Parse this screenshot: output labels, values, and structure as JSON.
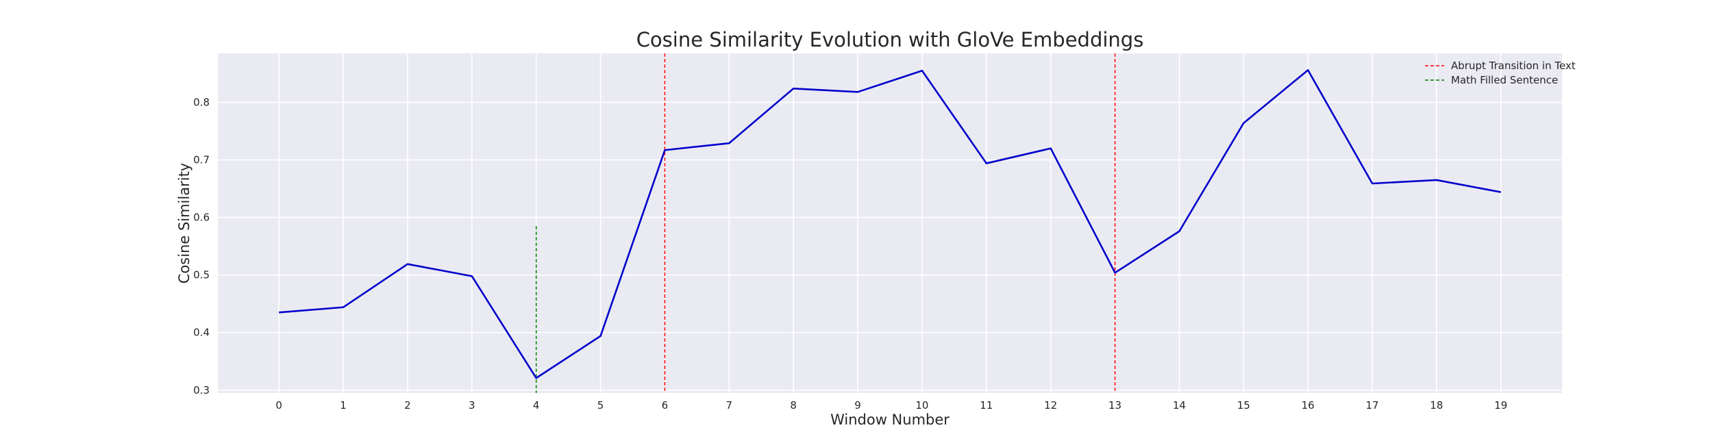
{
  "chart_data": {
    "type": "line",
    "title": "Cosine Similarity Evolution with GloVe Embeddings",
    "xlabel": "Window Number",
    "ylabel": "Cosine Similarity",
    "xlim": [
      -0.95,
      19.95
    ],
    "ylim": [
      0.295,
      0.885
    ],
    "xticks": [
      0,
      1,
      2,
      3,
      4,
      5,
      6,
      7,
      8,
      9,
      10,
      11,
      12,
      13,
      14,
      15,
      16,
      17,
      18,
      19
    ],
    "yticks": [
      0.3,
      0.4,
      0.5,
      0.6,
      0.7,
      0.8
    ],
    "ytick_labels": [
      "0.3",
      "0.4",
      "0.5",
      "0.6",
      "0.7",
      "0.8"
    ],
    "grid": true,
    "legend_position": "top-right",
    "series": [
      {
        "color": "#0000cc",
        "x": [
          0,
          1,
          2,
          3,
          4,
          5,
          6,
          7,
          8,
          9,
          10,
          11,
          12,
          13,
          14,
          15,
          16,
          17,
          18,
          19
        ],
        "values": [
          0.435,
          0.444,
          0.519,
          0.498,
          0.321,
          0.394,
          0.717,
          0.729,
          0.824,
          0.818,
          0.855,
          0.694,
          0.72,
          0.504,
          0.576,
          0.764,
          0.856,
          0.659,
          0.665,
          0.644
        ]
      }
    ],
    "vlines": [
      {
        "name": "Abrupt Transition in Text",
        "color": "#ff0000",
        "x": [
          6,
          13
        ],
        "ymin": 0.295,
        "ymax": 0.885
      },
      {
        "name": "Math Filled Sentence",
        "color": "#008000",
        "x": [
          4
        ],
        "ymin": 0.295,
        "ymax": 0.585
      }
    ],
    "background": "#eaeaf2"
  }
}
